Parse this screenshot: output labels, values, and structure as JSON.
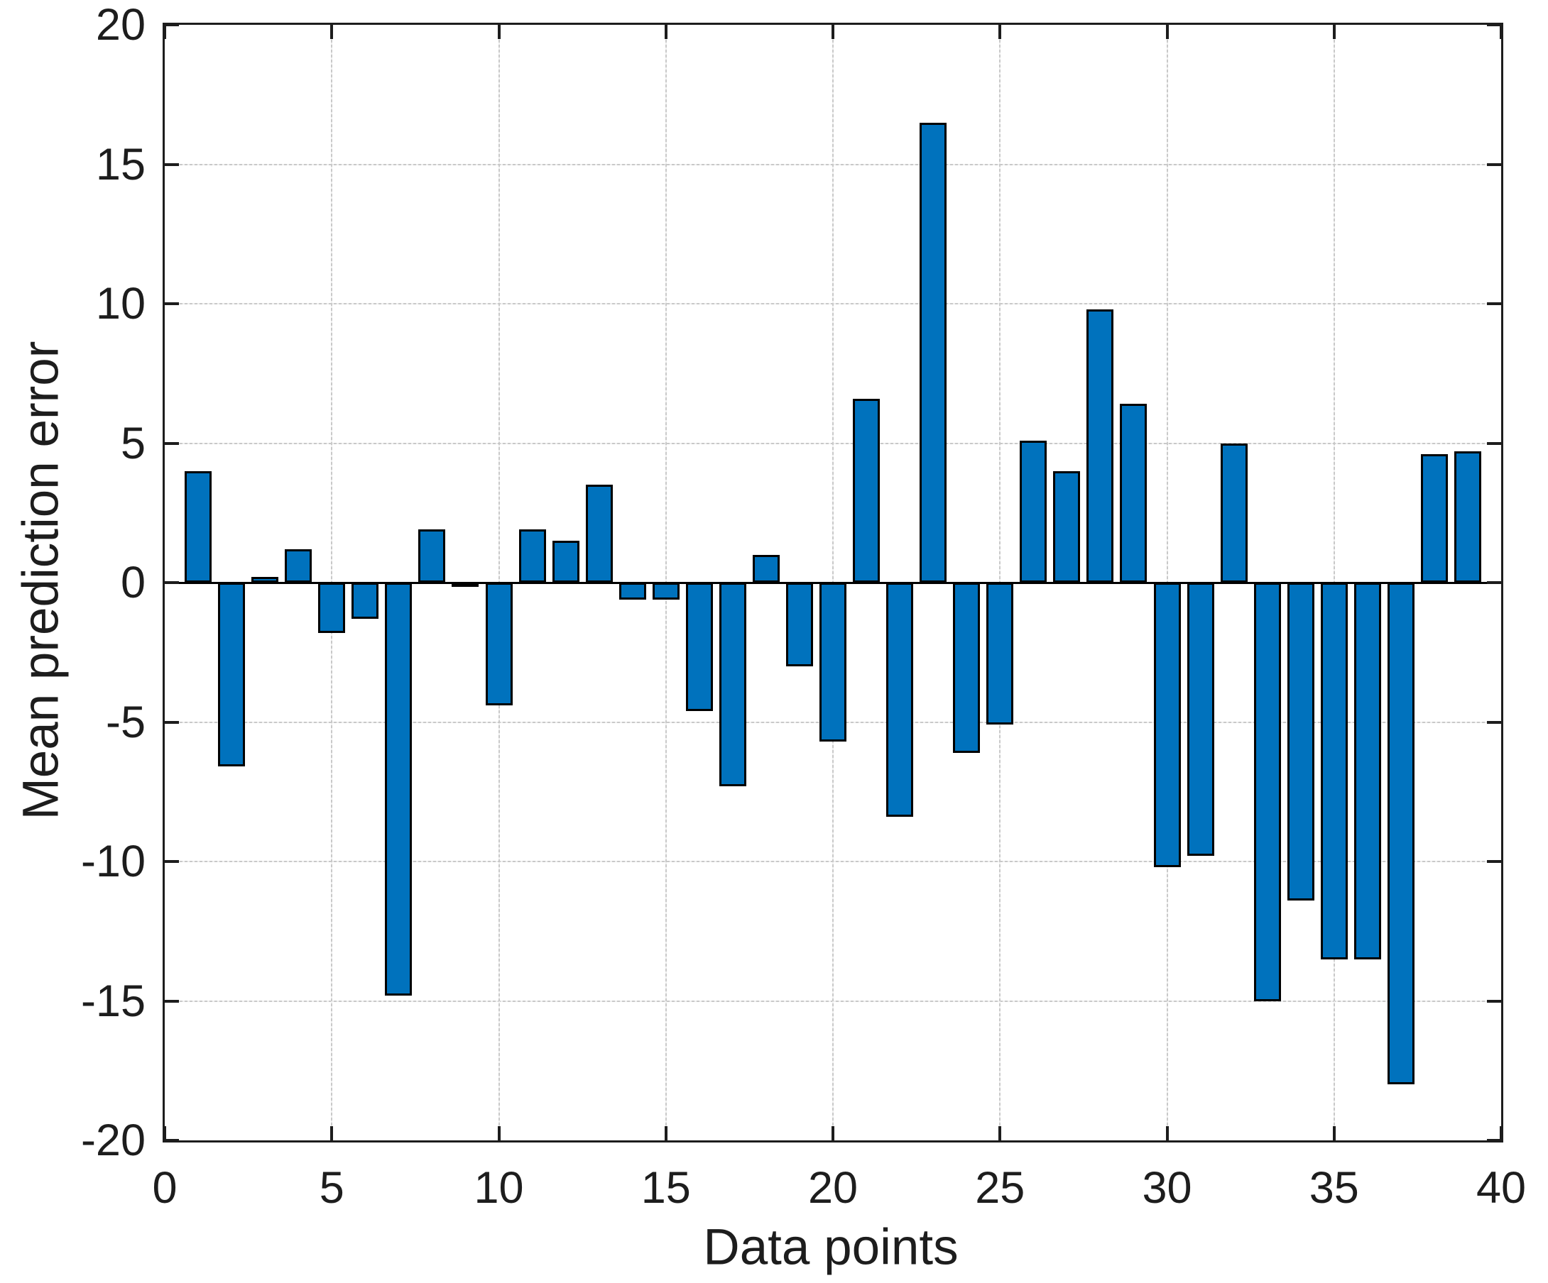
{
  "figure": {
    "xlabel": "Data points",
    "ylabel": "Mean prediction error"
  },
  "chart_data": {
    "type": "bar",
    "title": "",
    "xlabel": "Data points",
    "ylabel": "Mean prediction error",
    "x": [
      1,
      2,
      3,
      4,
      5,
      6,
      7,
      8,
      9,
      10,
      11,
      12,
      13,
      14,
      15,
      16,
      17,
      18,
      19,
      20,
      21,
      22,
      23,
      24,
      25,
      26,
      27,
      28,
      29,
      30,
      31,
      32,
      33,
      34,
      35,
      36,
      37,
      38,
      39
    ],
    "values": [
      4.0,
      -6.6,
      0.2,
      1.2,
      -1.8,
      -1.3,
      -14.8,
      1.9,
      -0.05,
      -4.4,
      1.9,
      1.5,
      3.5,
      -0.6,
      -0.6,
      -4.6,
      -7.3,
      1.0,
      -3.0,
      -5.7,
      6.6,
      -8.4,
      16.5,
      -6.1,
      -5.1,
      5.1,
      4.0,
      9.8,
      6.4,
      -10.2,
      -9.8,
      5.0,
      -15.0,
      -11.4,
      -13.5,
      -13.5,
      -18.0,
      4.6,
      4.7
    ],
    "xlim": [
      0,
      40
    ],
    "ylim": [
      -20,
      20
    ],
    "xticks": [
      0,
      5,
      10,
      15,
      20,
      25,
      30,
      35,
      40
    ],
    "yticks": [
      -20,
      -15,
      -10,
      -5,
      0,
      5,
      10,
      15,
      20
    ],
    "grid": true,
    "legend": null,
    "bar_color": "#0072BD",
    "bar_edge_color": "#000000",
    "axis_color": "#1d1d1d",
    "grid_color": "#c9c9c9",
    "background_color": "#ffffff"
  }
}
